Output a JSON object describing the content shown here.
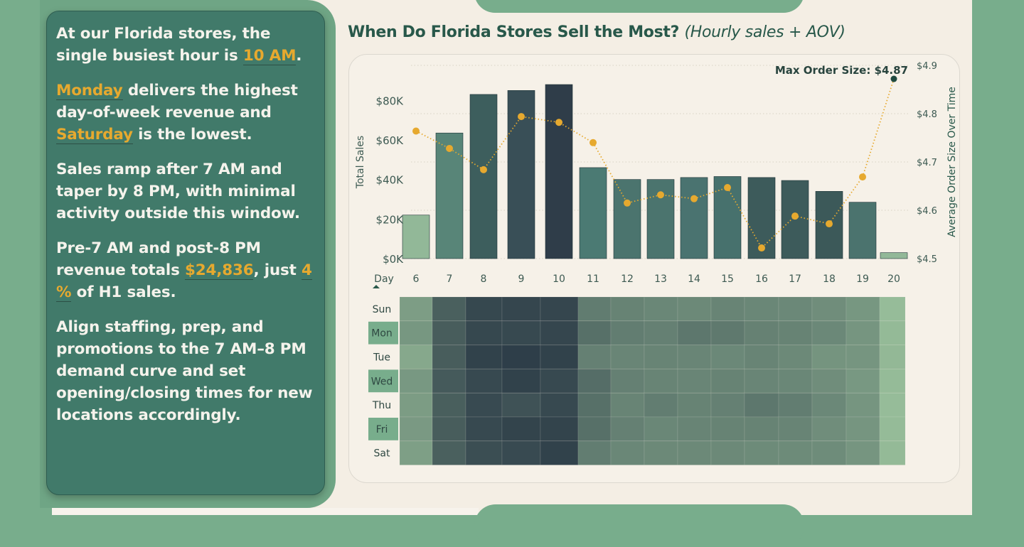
{
  "insights": {
    "p1": {
      "a": "At our Florida stores, the single busiest hour is ",
      "b": "10 AM",
      "c": "."
    },
    "p2": {
      "a": "Monday",
      "b": " delivers the highest day-of-week revenue and ",
      "c": "Saturday",
      "d": " is the lowest."
    },
    "p3": {
      "a": "Sales ramp after 7 AM and taper by 8 PM, with minimal activity outside this window."
    },
    "p4": {
      "a": "Pre-7 AM and post-8 PM revenue totals ",
      "b": "$24,836",
      "c": ", just ",
      "d": "4 %",
      "e": " of H1 sales."
    },
    "p5": {
      "a": "Align staffing, prep, and promotions to the 7 AM–8 PM demand curve and set opening/closing times for new locations accordingly."
    }
  },
  "title": {
    "main": "When Do Florida Stores Sell the Most?",
    "sub": "(Hourly sales + AOV)"
  },
  "colors": {
    "accent": "#e6a92f",
    "title": "#28584a",
    "panel": "#417a6a",
    "background": "#78ad8c"
  },
  "chart_data": [
    {
      "type": "bar",
      "xlabel": "Day",
      "ylabel": "Total Sales",
      "y2label": "Average Order Size Over Time",
      "categories": [
        "6",
        "7",
        "8",
        "9",
        "10",
        "11",
        "12",
        "13",
        "14",
        "15",
        "16",
        "17",
        "18",
        "19",
        "20"
      ],
      "y_ticks": [
        "$0K",
        "$20K",
        "$40K",
        "$60K",
        "$80K"
      ],
      "y_tick_values": [
        0,
        20000,
        40000,
        60000,
        80000
      ],
      "y2_ticks": [
        "$4.5",
        "$4.6",
        "$4.7",
        "$4.8",
        "$4.9"
      ],
      "y2_tick_values": [
        4.5,
        4.6,
        4.7,
        4.8,
        4.9
      ],
      "ylim": [
        0,
        88000
      ],
      "y2lim": [
        4.5,
        4.9
      ],
      "grid": true,
      "max_label": "Max Order Size: $4.87",
      "series": [
        {
          "kind": "bar",
          "values": [
            22000,
            63500,
            83000,
            85000,
            88000,
            46000,
            40000,
            40000,
            41000,
            41500,
            41000,
            39500,
            34000,
            28500,
            3000
          ],
          "colors": [
            "#92b898",
            "#588578",
            "#3d5e5d",
            "#394f57",
            "#2f3d49",
            "#4b7a73",
            "#4b746e",
            "#4b746e",
            "#4a7370",
            "#47716d",
            "#3d5b5b",
            "#3d5b5b",
            "#3c5959",
            "#4b736e",
            "#92b898"
          ]
        },
        {
          "kind": "line",
          "values": [
            4.764,
            4.728,
            4.684,
            4.794,
            4.782,
            4.74,
            4.615,
            4.632,
            4.624,
            4.647,
            4.522,
            4.588,
            4.572,
            4.669,
            4.872
          ],
          "color": "#e6a92f"
        }
      ]
    },
    {
      "type": "heatmap",
      "rows": [
        "Sun",
        "Mon",
        "Tue",
        "Wed",
        "Thu",
        "Fri",
        "Sat"
      ],
      "highlighted_rows": [
        "Mon",
        "Wed",
        "Fri"
      ],
      "columns": [
        "6",
        "7",
        "8",
        "9",
        "10",
        "11",
        "12",
        "13",
        "14",
        "15",
        "16",
        "17",
        "18",
        "19",
        "20"
      ],
      "values": [
        [
          0.28,
          0.74,
          0.92,
          0.93,
          0.93,
          0.53,
          0.48,
          0.45,
          0.43,
          0.47,
          0.45,
          0.44,
          0.4,
          0.33,
          0.05
        ],
        [
          0.33,
          0.76,
          0.92,
          0.91,
          0.93,
          0.62,
          0.52,
          0.5,
          0.57,
          0.55,
          0.49,
          0.48,
          0.44,
          0.34,
          0.07
        ],
        [
          0.2,
          0.76,
          0.96,
          0.99,
          0.96,
          0.5,
          0.46,
          0.47,
          0.46,
          0.44,
          0.47,
          0.43,
          0.35,
          0.34,
          0.08
        ],
        [
          0.32,
          0.78,
          0.91,
          0.96,
          0.91,
          0.64,
          0.5,
          0.47,
          0.46,
          0.48,
          0.46,
          0.45,
          0.4,
          0.32,
          0.06
        ],
        [
          0.29,
          0.75,
          0.9,
          0.84,
          0.91,
          0.62,
          0.47,
          0.52,
          0.48,
          0.5,
          0.57,
          0.52,
          0.44,
          0.34,
          0.05
        ],
        [
          0.31,
          0.76,
          0.91,
          0.95,
          0.95,
          0.62,
          0.5,
          0.45,
          0.47,
          0.48,
          0.48,
          0.47,
          0.4,
          0.34,
          0.06
        ],
        [
          0.27,
          0.74,
          0.87,
          0.9,
          0.96,
          0.52,
          0.45,
          0.43,
          0.43,
          0.43,
          0.42,
          0.42,
          0.41,
          0.34,
          0.07
        ]
      ],
      "color_low": "#9cc39d",
      "color_high": "#2d3d48"
    }
  ]
}
